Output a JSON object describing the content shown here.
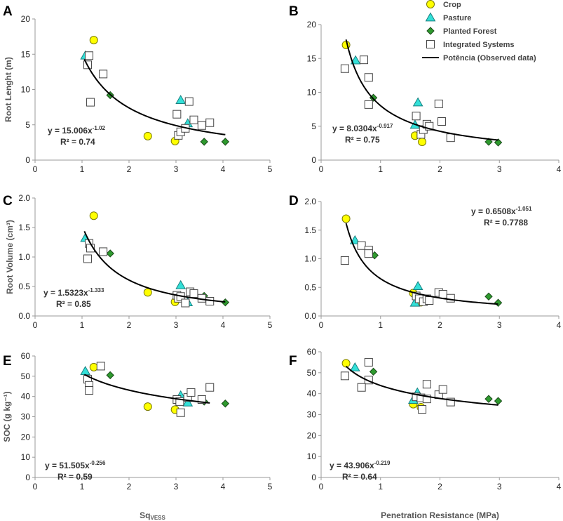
{
  "legend": {
    "entries": [
      {
        "key": "crop",
        "label": "Crop",
        "marker": "circle",
        "fill": "#ffff00",
        "stroke": "#7a7a00"
      },
      {
        "key": "pasture",
        "label": "Pasture",
        "marker": "triangle",
        "fill": "#33e0d8",
        "stroke": "#1a8080"
      },
      {
        "key": "forest",
        "label": "Planted Forest",
        "marker": "diamond",
        "fill": "#2e9a2e",
        "stroke": "#1a4a1a"
      },
      {
        "key": "integrated",
        "label": "Integrated Systems",
        "marker": "square",
        "fill": "#ffffff",
        "stroke": "#444444"
      },
      {
        "key": "fit",
        "label": "Potência (Observed data)",
        "marker": "line",
        "fill": "#000000",
        "stroke": "#000000"
      }
    ]
  },
  "chart_data": [
    {
      "panel": "A",
      "type": "scatter",
      "xlabel": "",
      "ylabel": "Root Lenght (m)",
      "xlim": [
        0,
        5
      ],
      "ylim": [
        0,
        20
      ],
      "xticks": [
        "0",
        "1",
        "2",
        "3",
        "4",
        "5"
      ],
      "yticks": [
        "0",
        "5",
        "10",
        "15",
        "20"
      ],
      "equation": {
        "base": "y = 15.006x",
        "exp": "-1.02",
        "r2": "R² = 0.74"
      },
      "fit": {
        "a": 15.006,
        "b": -1.02,
        "xmin": 1.05,
        "xmax": 4.05
      },
      "series": [
        {
          "name": "Crop",
          "points": [
            [
              1.25,
              17.0
            ],
            [
              2.4,
              3.4
            ],
            [
              2.98,
              2.7
            ]
          ]
        },
        {
          "name": "Pasture",
          "points": [
            [
              1.07,
              14.8
            ],
            [
              3.1,
              8.5
            ],
            [
              3.25,
              5.2
            ]
          ]
        },
        {
          "name": "Planted Forest",
          "points": [
            [
              1.6,
              9.2
            ],
            [
              3.6,
              2.6
            ],
            [
              4.05,
              2.6
            ]
          ]
        },
        {
          "name": "Integrated Systems",
          "points": [
            [
              1.15,
              14.8
            ],
            [
              1.12,
              13.5
            ],
            [
              1.45,
              12.2
            ],
            [
              1.18,
              8.2
            ],
            [
              3.02,
              6.5
            ],
            [
              3.05,
              3.5
            ],
            [
              3.1,
              4.0
            ],
            [
              3.2,
              4.5
            ],
            [
              3.28,
              8.3
            ],
            [
              3.38,
              5.7
            ],
            [
              3.55,
              4.9
            ],
            [
              3.72,
              5.3
            ]
          ]
        }
      ]
    },
    {
      "panel": "B",
      "type": "scatter",
      "xlabel": "",
      "ylabel": "",
      "xlim": [
        0,
        4
      ],
      "ylim": [
        0,
        20
      ],
      "xticks": [
        "0",
        "1",
        "2",
        "3",
        "4"
      ],
      "yticks": [
        "0",
        "5",
        "10",
        "15",
        "20"
      ],
      "equation": {
        "base": "y = 8.0304x",
        "exp": "-0.917",
        "r2": "R² = 0.75"
      },
      "fit": {
        "a": 8.0304,
        "b": -0.917,
        "xmin": 0.42,
        "xmax": 2.98
      },
      "series": [
        {
          "name": "Crop",
          "points": [
            [
              0.42,
              17.0
            ],
            [
              1.58,
              3.6
            ],
            [
              1.7,
              2.7
            ]
          ]
        },
        {
          "name": "Pasture",
          "points": [
            [
              0.58,
              14.7
            ],
            [
              1.63,
              8.5
            ],
            [
              1.58,
              5.2
            ]
          ]
        },
        {
          "name": "Planted Forest",
          "points": [
            [
              0.88,
              9.2
            ],
            [
              2.82,
              2.7
            ],
            [
              2.98,
              2.6
            ]
          ]
        },
        {
          "name": "Integrated Systems",
          "points": [
            [
              0.4,
              13.5
            ],
            [
              0.72,
              14.8
            ],
            [
              0.8,
              12.2
            ],
            [
              0.8,
              8.2
            ],
            [
              1.6,
              6.5
            ],
            [
              1.68,
              3.8
            ],
            [
              1.72,
              4.5
            ],
            [
              1.78,
              5.3
            ],
            [
              1.82,
              5.0
            ],
            [
              1.98,
              8.3
            ],
            [
              2.03,
              5.7
            ],
            [
              2.18,
              3.3
            ]
          ]
        }
      ]
    },
    {
      "panel": "C",
      "type": "scatter",
      "xlabel": "",
      "ylabel": "Root Volume (cm³)",
      "xlim": [
        0,
        5
      ],
      "ylim": [
        0,
        2.0
      ],
      "xticks": [
        "0",
        "1",
        "2",
        "3",
        "4",
        "5"
      ],
      "yticks": [
        "0.0",
        "0.5",
        "1.0",
        "1.5",
        "2.0"
      ],
      "equation": {
        "base": "y = 1.5323x",
        "exp": "-1.333",
        "r2": "R² = 0.85"
      },
      "fit": {
        "a": 1.5323,
        "b": -1.333,
        "xmin": 1.05,
        "xmax": 4.05
      },
      "series": [
        {
          "name": "Crop",
          "points": [
            [
              1.25,
              1.7
            ],
            [
              2.4,
              0.4
            ],
            [
              2.98,
              0.24
            ]
          ]
        },
        {
          "name": "Pasture",
          "points": [
            [
              1.07,
              1.32
            ],
            [
              3.1,
              0.52
            ],
            [
              3.25,
              0.23
            ]
          ]
        },
        {
          "name": "Planted Forest",
          "points": [
            [
              1.6,
              1.06
            ],
            [
              3.6,
              0.34
            ],
            [
              4.05,
              0.23
            ]
          ]
        },
        {
          "name": "Integrated Systems",
          "points": [
            [
              1.15,
              1.23
            ],
            [
              1.18,
              1.15
            ],
            [
              1.45,
              1.09
            ],
            [
              1.12,
              0.97
            ],
            [
              3.02,
              0.35
            ],
            [
              3.05,
              0.3
            ],
            [
              3.1,
              0.33
            ],
            [
              3.2,
              0.22
            ],
            [
              3.3,
              0.41
            ],
            [
              3.38,
              0.38
            ],
            [
              3.55,
              0.3
            ],
            [
              3.72,
              0.25
            ]
          ]
        }
      ]
    },
    {
      "panel": "D",
      "type": "scatter",
      "xlabel": "",
      "ylabel": "",
      "xlim": [
        0,
        4
      ],
      "ylim": [
        0,
        2.0
      ],
      "xticks": [
        "0",
        "1",
        "2",
        "3",
        "4"
      ],
      "yticks": [
        "0.0",
        "0.5",
        "1.0",
        "1.5",
        "2.0"
      ],
      "equation": {
        "base": "y = 0.6508x",
        "exp": "-1.051",
        "r2": "R² = 0.7788"
      },
      "fit": {
        "a": 0.6508,
        "b": -1.051,
        "xmin": 0.42,
        "xmax": 2.98
      },
      "series": [
        {
          "name": "Crop",
          "points": [
            [
              0.42,
              1.7
            ],
            [
              1.55,
              0.4
            ],
            [
              1.68,
              0.24
            ]
          ]
        },
        {
          "name": "Pasture",
          "points": [
            [
              0.57,
              1.32
            ],
            [
              1.63,
              0.52
            ],
            [
              1.58,
              0.23
            ]
          ]
        },
        {
          "name": "Planted Forest",
          "points": [
            [
              0.9,
              1.06
            ],
            [
              2.82,
              0.34
            ],
            [
              2.98,
              0.23
            ]
          ]
        },
        {
          "name": "Integrated Systems",
          "points": [
            [
              0.4,
              0.97
            ],
            [
              0.68,
              1.23
            ],
            [
              0.8,
              1.15
            ],
            [
              0.8,
              1.09
            ],
            [
              1.6,
              0.35
            ],
            [
              1.65,
              0.3
            ],
            [
              1.72,
              0.25
            ],
            [
              1.78,
              0.3
            ],
            [
              1.82,
              0.27
            ],
            [
              1.98,
              0.41
            ],
            [
              2.05,
              0.38
            ],
            [
              2.18,
              0.31
            ]
          ]
        }
      ]
    },
    {
      "panel": "E",
      "type": "scatter",
      "xlabel": "Sq",
      "xlabel_sub": "VESS",
      "ylabel": "SOC (g kg⁻¹)",
      "xlim": [
        0,
        5
      ],
      "ylim": [
        0,
        60
      ],
      "xticks": [
        "0",
        "1",
        "2",
        "3",
        "4",
        "5"
      ],
      "yticks": [
        "0",
        "10",
        "20",
        "30",
        "40",
        "50",
        "60"
      ],
      "equation": {
        "base": "y = 51.505x",
        "exp": "-0.256",
        "r2": "R² = 0.59"
      },
      "fit": {
        "a": 51.505,
        "b": -0.256,
        "xmin": 1.05,
        "xmax": 3.72
      },
      "series": [
        {
          "name": "Crop",
          "points": [
            [
              1.25,
              54.5
            ],
            [
              2.4,
              35.0
            ],
            [
              2.98,
              33.5
            ]
          ]
        },
        {
          "name": "Pasture",
          "points": [
            [
              1.07,
              52.5
            ],
            [
              3.1,
              40.5
            ],
            [
              3.25,
              37.0
            ]
          ]
        },
        {
          "name": "Planted Forest",
          "points": [
            [
              1.6,
              50.5
            ],
            [
              3.6,
              37.5
            ],
            [
              4.05,
              36.5
            ]
          ]
        },
        {
          "name": "Integrated Systems",
          "points": [
            [
              1.4,
              55.0
            ],
            [
              1.12,
              48.5
            ],
            [
              1.15,
              45.5
            ],
            [
              1.15,
              43.0
            ],
            [
              3.02,
              38.5
            ],
            [
              3.08,
              37.5
            ],
            [
              3.1,
              32.0
            ],
            [
              3.25,
              39.5
            ],
            [
              3.32,
              42.0
            ],
            [
              3.55,
              38.5
            ],
            [
              3.72,
              44.5
            ]
          ]
        }
      ]
    },
    {
      "panel": "F",
      "type": "scatter",
      "xlabel": "Penetration Resistance (MPa)",
      "ylabel": "",
      "xlim": [
        0,
        4
      ],
      "ylim": [
        0,
        60
      ],
      "xticks": [
        "0",
        "1",
        "2",
        "3",
        "4"
      ],
      "yticks": [
        "0",
        "10",
        "20",
        "30",
        "40",
        "50",
        "60"
      ],
      "equation": {
        "base": "y = 43.906x",
        "exp": "-0.219",
        "r2": "R² = 0.64"
      },
      "fit": {
        "a": 43.906,
        "b": -0.219,
        "xmin": 0.42,
        "xmax": 2.98
      },
      "series": [
        {
          "name": "Crop",
          "points": [
            [
              0.42,
              54.5
            ],
            [
              1.55,
              35.0
            ],
            [
              1.68,
              33.5
            ]
          ]
        },
        {
          "name": "Pasture",
          "points": [
            [
              0.57,
              52.5
            ],
            [
              1.62,
              40.5
            ],
            [
              1.55,
              37.0
            ]
          ]
        },
        {
          "name": "Planted Forest",
          "points": [
            [
              0.88,
              50.5
            ],
            [
              2.82,
              37.5
            ],
            [
              2.98,
              36.5
            ]
          ]
        },
        {
          "name": "Integrated Systems",
          "points": [
            [
              0.4,
              48.5
            ],
            [
              0.8,
              55.0
            ],
            [
              0.8,
              46.5
            ],
            [
              0.68,
              43.0
            ],
            [
              1.6,
              38.5
            ],
            [
              1.68,
              38.0
            ],
            [
              1.7,
              32.5
            ],
            [
              1.78,
              37.5
            ],
            [
              1.78,
              44.5
            ],
            [
              1.98,
              39.5
            ],
            [
              2.05,
              42.0
            ],
            [
              2.18,
              36.0
            ]
          ]
        }
      ]
    }
  ]
}
